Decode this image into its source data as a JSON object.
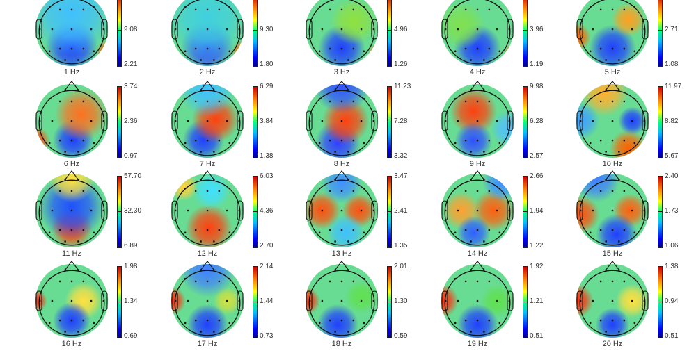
{
  "chart_data": {
    "type": "heatmap",
    "subtype": "eeg-topographic-maps",
    "title": "",
    "colormap": "jet",
    "layout": {
      "rows": 4,
      "cols": 5
    },
    "maps": [
      {
        "label": "1 Hz",
        "min": "2.21",
        "mid": "9.08",
        "max": ""
      },
      {
        "label": "2 Hz",
        "min": "1.80",
        "mid": "9.30",
        "max": ""
      },
      {
        "label": "3 Hz",
        "min": "1.26",
        "mid": "4.96",
        "max": ""
      },
      {
        "label": "4 Hz",
        "min": "1.19",
        "mid": "3.96",
        "max": ""
      },
      {
        "label": "5 Hz",
        "min": "1.08",
        "mid": "2.71",
        "max": ""
      },
      {
        "label": "6 Hz",
        "min": "0.97",
        "mid": "2.36",
        "max": "3.74"
      },
      {
        "label": "7 Hz",
        "min": "1.38",
        "mid": "3.84",
        "max": "6.29"
      },
      {
        "label": "8 Hz",
        "min": "3.32",
        "mid": "7.28",
        "max": "11.23"
      },
      {
        "label": "9 Hz",
        "min": "2.57",
        "mid": "6.28",
        "max": "9.98"
      },
      {
        "label": "10 Hz",
        "min": "5.67",
        "mid": "8.82",
        "max": "11.97"
      },
      {
        "label": "11 Hz",
        "min": "6.89",
        "mid": "32.30",
        "max": "57.70"
      },
      {
        "label": "12 Hz",
        "min": "2.70",
        "mid": "4.36",
        "max": "6.03"
      },
      {
        "label": "13 Hz",
        "min": "1.35",
        "mid": "2.41",
        "max": "3.47"
      },
      {
        "label": "14 Hz",
        "min": "1.22",
        "mid": "1.94",
        "max": "2.66"
      },
      {
        "label": "15 Hz",
        "min": "1.06",
        "mid": "1.73",
        "max": "2.40"
      },
      {
        "label": "16 Hz",
        "min": "0.69",
        "mid": "1.34",
        "max": "1.98"
      },
      {
        "label": "17 Hz",
        "min": "0.73",
        "mid": "1.44",
        "max": "2.14"
      },
      {
        "label": "18 Hz",
        "min": "0.59",
        "mid": "1.30",
        "max": "2.01"
      },
      {
        "label": "19 Hz",
        "min": "0.51",
        "mid": "1.21",
        "max": "1.92"
      },
      {
        "label": "20 Hz",
        "min": "0.51",
        "mid": "0.94",
        "max": "1.38"
      }
    ],
    "blobs": [
      [
        [
          "#2040ff",
          0.5,
          0.72,
          0.28
        ],
        [
          "#40c0ff",
          0.5,
          0.3,
          0.45
        ],
        [
          "#ff6000",
          0.95,
          0.78,
          0.12
        ]
      ],
      [
        [
          "#3050ff",
          0.5,
          0.72,
          0.28
        ],
        [
          "#40d0e0",
          0.5,
          0.35,
          0.45
        ],
        [
          "#ff6000",
          0.95,
          0.78,
          0.12
        ]
      ],
      [
        [
          "#2040ff",
          0.5,
          0.74,
          0.25
        ],
        [
          "#90e040",
          0.65,
          0.4,
          0.25
        ],
        [
          "#ff6000",
          0.95,
          0.8,
          0.1
        ]
      ],
      [
        [
          "#2040ff",
          0.5,
          0.74,
          0.25
        ],
        [
          "#80e050",
          0.3,
          0.45,
          0.25
        ],
        [
          "#ff6000",
          0.95,
          0.8,
          0.1
        ]
      ],
      [
        [
          "#2040ff",
          0.5,
          0.74,
          0.25
        ],
        [
          "#ffa020",
          0.7,
          0.38,
          0.18
        ],
        [
          "#ff6000",
          0.05,
          0.6,
          0.15
        ]
      ],
      [
        [
          "#2040ff",
          0.52,
          0.74,
          0.22
        ],
        [
          "#ff7020",
          0.62,
          0.42,
          0.28
        ],
        [
          "#ff5010",
          0.05,
          0.75,
          0.15
        ]
      ],
      [
        [
          "#2040ff",
          0.45,
          0.74,
          0.22
        ],
        [
          "#ff4010",
          0.6,
          0.48,
          0.25
        ],
        [
          "#40c0ff",
          0.5,
          0.1,
          0.3
        ]
      ],
      [
        [
          "#3040ff",
          0.45,
          0.78,
          0.24
        ],
        [
          "#ff4010",
          0.55,
          0.5,
          0.25
        ],
        [
          "#3050ff",
          0.5,
          0.05,
          0.3
        ]
      ],
      [
        [
          "#ff4010",
          0.45,
          0.38,
          0.25
        ],
        [
          "#3050ff",
          0.45,
          0.75,
          0.2
        ],
        [
          "#50c0ff",
          0.9,
          0.6,
          0.2
        ]
      ],
      [
        [
          "#ffb030",
          0.4,
          0.15,
          0.25
        ],
        [
          "#2040ff",
          0.75,
          0.5,
          0.15
        ],
        [
          "#ff6000",
          0.7,
          0.85,
          0.2
        ],
        [
          "#40a0ff",
          0.1,
          0.5,
          0.2
        ]
      ],
      [
        [
          "#ff4010",
          0.5,
          0.72,
          0.22
        ],
        [
          "#2050ff",
          0.5,
          0.45,
          0.35
        ],
        [
          "#ffe040",
          0.5,
          0.1,
          0.25
        ]
      ],
      [
        [
          "#ff4010",
          0.52,
          0.72,
          0.25
        ],
        [
          "#40e0ff",
          0.55,
          0.25,
          0.2
        ],
        [
          "#ffd040",
          0.2,
          0.2,
          0.15
        ]
      ],
      [
        [
          "#ff5010",
          0.25,
          0.5,
          0.2
        ],
        [
          "#ff5010",
          0.72,
          0.5,
          0.18
        ],
        [
          "#4090ff",
          0.5,
          0.15,
          0.22
        ],
        [
          "#40c0ff",
          0.55,
          0.78,
          0.2
        ]
      ],
      [
        [
          "#ff6010",
          0.7,
          0.5,
          0.22
        ],
        [
          "#ffa030",
          0.3,
          0.5,
          0.2
        ],
        [
          "#3060ff",
          0.45,
          0.78,
          0.18
        ],
        [
          "#4090ff",
          0.8,
          0.15,
          0.2
        ]
      ],
      [
        [
          "#ff5010",
          0.1,
          0.55,
          0.2
        ],
        [
          "#ff6010",
          0.72,
          0.5,
          0.18
        ],
        [
          "#2040ff",
          0.55,
          0.8,
          0.22
        ],
        [
          "#4080ff",
          0.3,
          0.1,
          0.25
        ]
      ],
      [
        [
          "#ff3010",
          0.05,
          0.5,
          0.12
        ],
        [
          "#ffe040",
          0.65,
          0.5,
          0.2
        ],
        [
          "#2040ff",
          0.5,
          0.75,
          0.2
        ]
      ],
      [
        [
          "#ff3010",
          0.05,
          0.5,
          0.15
        ],
        [
          "#d0e040",
          0.75,
          0.5,
          0.15
        ],
        [
          "#2040ff",
          0.5,
          0.8,
          0.22
        ],
        [
          "#4080ff",
          0.5,
          0.1,
          0.3
        ]
      ],
      [
        [
          "#ff3010",
          0.05,
          0.5,
          0.15
        ],
        [
          "#60e050",
          0.75,
          0.45,
          0.18
        ],
        [
          "#2040ff",
          0.45,
          0.8,
          0.22
        ]
      ],
      [
        [
          "#ff3010",
          0.05,
          0.5,
          0.18
        ],
        [
          "#60e050",
          0.75,
          0.5,
          0.18
        ],
        [
          "#2040ff",
          0.5,
          0.8,
          0.22
        ]
      ],
      [
        [
          "#ff3010",
          0.05,
          0.5,
          0.18
        ],
        [
          "#ffe040",
          0.75,
          0.5,
          0.18
        ],
        [
          "#2040ff",
          0.5,
          0.8,
          0.18
        ]
      ]
    ]
  }
}
